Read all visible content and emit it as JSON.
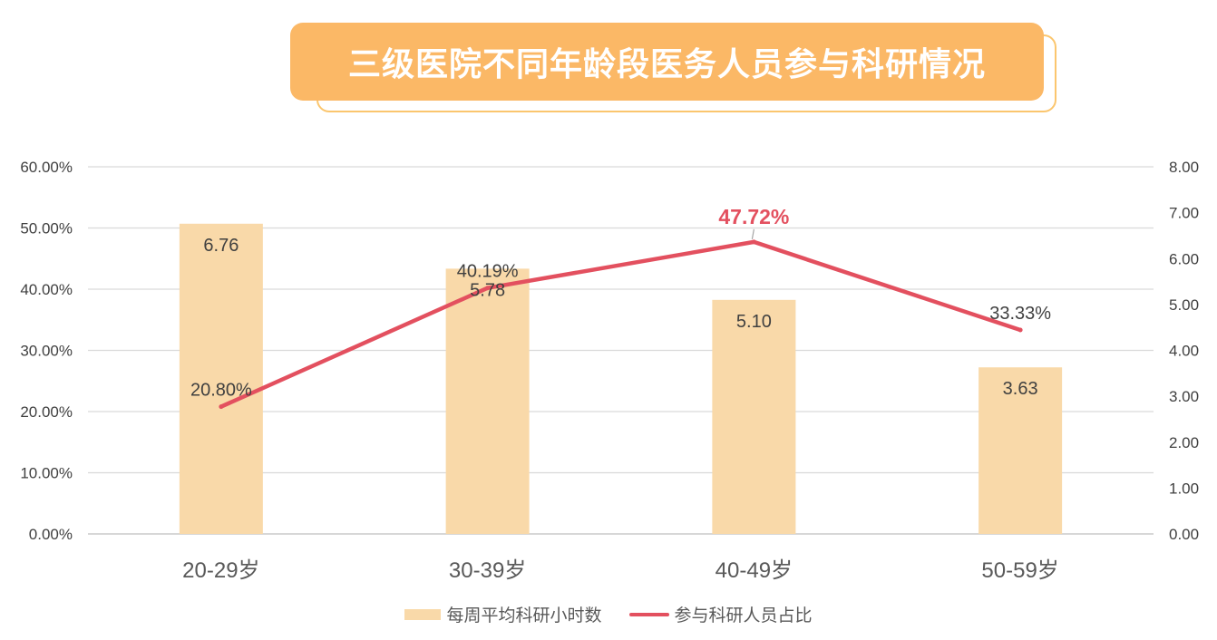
{
  "title": "三级医院不同年龄段医务人员参与科研情况",
  "colors": {
    "bar": "#f9d9a9",
    "line": "#e3505f",
    "title_bg": "#fbb866",
    "title_outline": "#fbc66e",
    "grid": "#d9d9d9"
  },
  "chart_data": {
    "type": "bar",
    "categories": [
      "20-29岁",
      "30-39岁",
      "40-49岁",
      "50-59岁"
    ],
    "series": [
      {
        "name": "每周平均科研小时数",
        "type": "bar",
        "axis": "right",
        "values": [
          6.76,
          5.78,
          5.1,
          3.63
        ],
        "labels": [
          "6.76",
          "5.78",
          "5.10",
          "3.63"
        ]
      },
      {
        "name": "参与科研人员占比",
        "type": "line",
        "axis": "left",
        "values": [
          20.8,
          40.19,
          47.72,
          33.33
        ],
        "labels": [
          "20.80%",
          "40.19%",
          "47.72%",
          "33.33%"
        ],
        "highlight_index": 2
      }
    ],
    "y_left": {
      "min": 0,
      "max": 60,
      "ticks": [
        "0.00%",
        "10.00%",
        "20.00%",
        "30.00%",
        "40.00%",
        "50.00%",
        "60.00%"
      ]
    },
    "y_right": {
      "min": 0,
      "max": 8,
      "ticks": [
        "0.00",
        "1.00",
        "2.00",
        "3.00",
        "4.00",
        "5.00",
        "6.00",
        "7.00",
        "8.00"
      ]
    },
    "grid": true,
    "legend_position": "bottom"
  }
}
